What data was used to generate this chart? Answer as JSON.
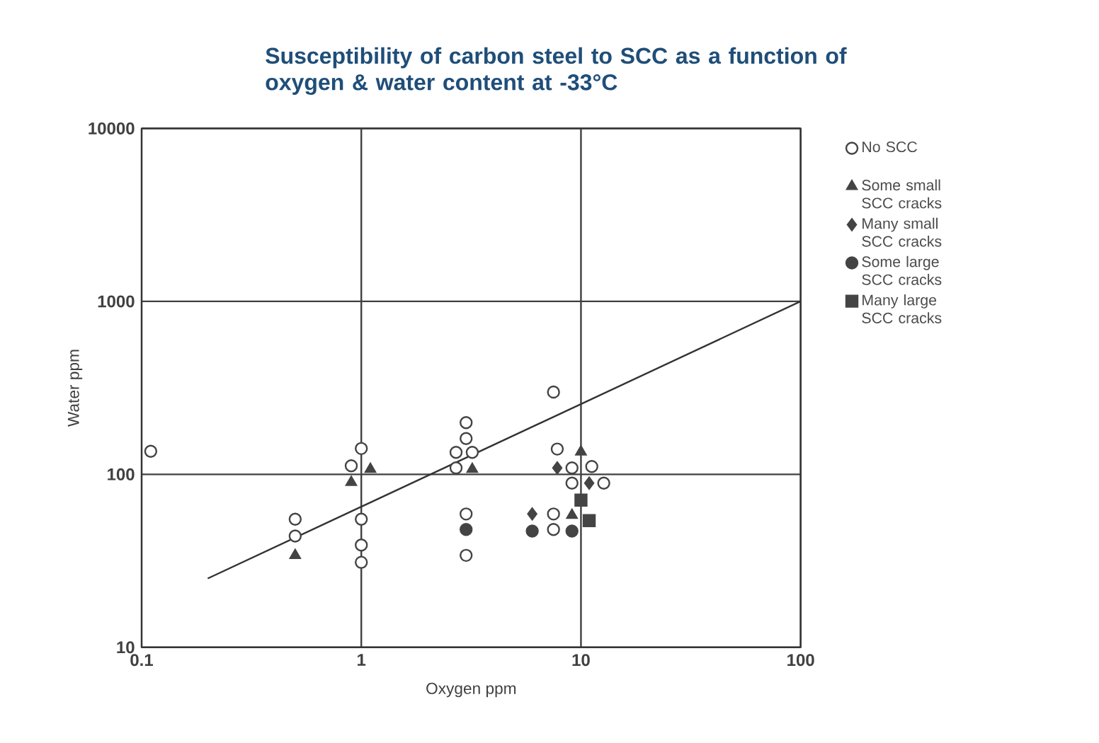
{
  "chart_data": {
    "type": "scatter",
    "title": "Susceptibility of carbon steel to SCC as a function of oxygen & water content at -33°C",
    "xlabel": "Oxygen ppm",
    "ylabel": "Water ppm",
    "log": "xy",
    "xlim": [
      0.1,
      100
    ],
    "ylim": [
      10,
      10000
    ],
    "xticks": [
      0.1,
      1,
      10,
      100
    ],
    "yticks": [
      10,
      100,
      1000,
      10000
    ],
    "grid": true,
    "legend": "right",
    "series": [
      {
        "name": "No SCC",
        "color": "#444444",
        "marker": "circle",
        "x": [
          0.11,
          0.5,
          0.5,
          0.9,
          1,
          1,
          1,
          1,
          2.7,
          3,
          3,
          3.2,
          2.7,
          3,
          3,
          7.5,
          7.8,
          7.5,
          7.5,
          9.1,
          9.1,
          11.2,
          12.7
        ],
        "values": [
          136,
          55,
          44,
          112,
          141,
          55,
          39,
          31,
          134,
          199,
          161,
          134,
          109,
          59,
          34,
          299,
          140,
          59,
          48,
          109,
          89,
          111,
          89
        ]
      },
      {
        "name": "Some small SCC cracks",
        "color": "#444444",
        "marker": "triangle",
        "x": [
          0.5,
          0.9,
          1.1,
          3.2,
          10,
          9.1
        ],
        "values": [
          34,
          90,
          107,
          107,
          135,
          58
        ]
      },
      {
        "name": "Many small SCC cracks",
        "color": "#444444",
        "marker": "diamond",
        "x": [
          7.8,
          6,
          10.9
        ],
        "values": [
          109,
          59,
          89
        ]
      },
      {
        "name": "Some large SCC cracks",
        "color": "#444444",
        "marker": "circle",
        "x": [
          3,
          6,
          9.1
        ],
        "values": [
          48,
          47,
          47
        ]
      },
      {
        "name": "Many large SCC cracks",
        "color": "#444444",
        "marker": "square",
        "x": [
          10,
          10.9
        ],
        "values": [
          71,
          54
        ]
      },
      {
        "type": "line",
        "color": "#333333",
        "x": [
          0.2,
          100
        ],
        "values": [
          25,
          1000
        ]
      }
    ]
  }
}
